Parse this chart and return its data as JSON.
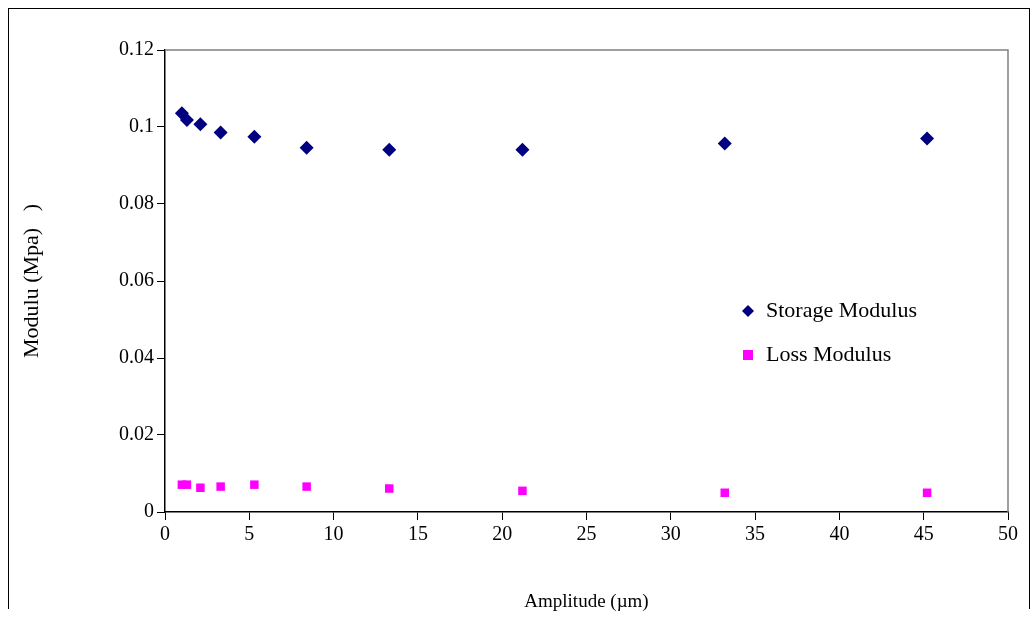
{
  "chart_data": {
    "type": "scatter",
    "xlabel": "Amplitude (µm)",
    "ylabel": "Modulu (Mpa)   )",
    "xlim": [
      0,
      50
    ],
    "xticks": [
      0,
      5,
      10,
      15,
      20,
      25,
      30,
      35,
      40,
      45,
      50
    ],
    "ylim": [
      0,
      0.12
    ],
    "yticks": [
      0,
      0.02,
      0.04,
      0.06,
      0.08,
      0.1,
      0.12
    ],
    "grid": false,
    "legend": "right",
    "series": [
      {
        "name": "Storage Modulus",
        "color": "#000080",
        "marker": "diamond",
        "x": [
          1.0,
          1.3,
          2.1,
          3.3,
          5.3,
          8.4,
          13.3,
          21.2,
          33.2,
          45.2
        ],
        "values": [
          0.1036,
          0.1018,
          0.1007,
          0.0986,
          0.0975,
          0.0946,
          0.0941,
          0.0941,
          0.0957,
          0.097
        ]
      },
      {
        "name": "Loss Modulus",
        "color": "#ff00ff",
        "marker": "square",
        "x": [
          1.0,
          1.3,
          2.1,
          3.3,
          5.3,
          8.4,
          13.3,
          21.2,
          33.2,
          45.2
        ],
        "values": [
          0.0071,
          0.0071,
          0.0063,
          0.0066,
          0.0071,
          0.0066,
          0.0061,
          0.0055,
          0.005,
          0.005
        ]
      }
    ]
  }
}
